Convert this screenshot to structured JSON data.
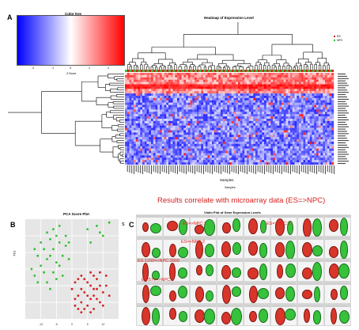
{
  "panel_labels": {
    "a": "A",
    "b": "B",
    "c": "C"
  },
  "colorkey": {
    "title": "Color Key",
    "ticks": [
      "-2",
      "-1",
      "0",
      "1",
      "2"
    ],
    "label": "Z-Score"
  },
  "heatmap": {
    "title": "Heatmap of Expression Level",
    "xlabel": "Samples",
    "xsublabel": "Samples",
    "legend": [
      "ES",
      "NPC"
    ],
    "colors": {
      "low": "#0000ff",
      "mid": "#ffffff",
      "high": "#ff0000",
      "es": "#d42020",
      "npc": "#30c030"
    }
  },
  "headline": "Results correlate with microarray data (ES=>NPC)",
  "pca": {
    "title": "PCA Score Plot",
    "ylabel": "PC2",
    "c_label": "s"
  },
  "violin": {
    "title": "Violin Plot of Gene Expression Levels",
    "annotations": [
      "ES=>NPC:1",
      "ES=>NPC:3",
      "ES=>NPC:2",
      "ES:1200=>NPC:3900",
      "ES:577=>NPC:0"
    ]
  },
  "chart_data": [
    {
      "type": "heatmap",
      "title": "Heatmap of Expression Level",
      "xlabel": "Samples",
      "groups": [
        "ES",
        "NPC"
      ],
      "color_scale": {
        "min": -2,
        "max": 2,
        "label": "Z-Score"
      }
    },
    {
      "type": "scatter",
      "title": "PCA Score Plot",
      "ylabel": "PC2",
      "xlim": [
        -15,
        15
      ],
      "ylim": [
        -15,
        15
      ],
      "series": [
        {
          "name": "ES",
          "color": "#d42020",
          "points": [
            [
              3,
              -2
            ],
            [
              5,
              -4
            ],
            [
              7,
              -6
            ],
            [
              2,
              -8
            ],
            [
              6,
              -1
            ],
            [
              8,
              -3
            ],
            [
              4,
              -7
            ],
            [
              9,
              -5
            ],
            [
              1,
              -4
            ],
            [
              6,
              -9
            ],
            [
              3,
              -10
            ],
            [
              10,
              -7
            ],
            [
              5,
              -11
            ],
            [
              7,
              -12
            ],
            [
              2,
              -12
            ],
            [
              8,
              -9
            ],
            [
              4,
              -3
            ],
            [
              11,
              -2
            ],
            [
              9,
              -10
            ],
            [
              1,
              -9
            ],
            [
              6,
              -5
            ],
            [
              3,
              -6
            ],
            [
              12,
              -8
            ],
            [
              7,
              -2
            ],
            [
              0,
              -6
            ],
            [
              5,
              -8
            ],
            [
              10,
              -11
            ],
            [
              2,
              -3
            ],
            [
              8,
              -6
            ],
            [
              4,
              -12
            ],
            [
              6,
              -13
            ],
            [
              11,
              -5
            ],
            [
              1,
              -11
            ],
            [
              9,
              -1
            ],
            [
              3,
              -13
            ],
            [
              7,
              -8
            ]
          ]
        },
        {
          "name": "NPC",
          "color": "#30c030",
          "points": [
            [
              -6,
              6
            ],
            [
              -8,
              3
            ],
            [
              -4,
              8
            ],
            [
              -10,
              1
            ],
            [
              -5,
              2
            ],
            [
              -7,
              9
            ],
            [
              -3,
              4
            ],
            [
              -9,
              6
            ],
            [
              -11,
              4
            ],
            [
              -6,
              -1
            ],
            [
              -2,
              7
            ],
            [
              -12,
              -2
            ],
            [
              -8,
              -4
            ],
            [
              -5,
              10
            ],
            [
              -9,
              -1
            ],
            [
              -4,
              1
            ],
            [
              -7,
              4
            ],
            [
              -10,
              8
            ],
            [
              -3,
              -2
            ],
            [
              -6,
              12
            ],
            [
              -1,
              3
            ],
            [
              -11,
              -4
            ],
            [
              -8,
              11
            ],
            [
              -2,
              10
            ],
            [
              5,
              12
            ],
            [
              8,
              13
            ],
            [
              10,
              10
            ],
            [
              6,
              8
            ],
            [
              9,
              11
            ],
            [
              12,
              14
            ],
            [
              -13,
              0
            ],
            [
              -5,
              -3
            ],
            [
              -7,
              -6
            ],
            [
              -12,
              6
            ],
            [
              -4,
              13
            ],
            [
              -1,
              8
            ]
          ]
        }
      ]
    },
    {
      "type": "violin",
      "title": "Violin Plot of Gene Expression Levels",
      "groups": [
        "ES",
        "NPC"
      ]
    }
  ]
}
